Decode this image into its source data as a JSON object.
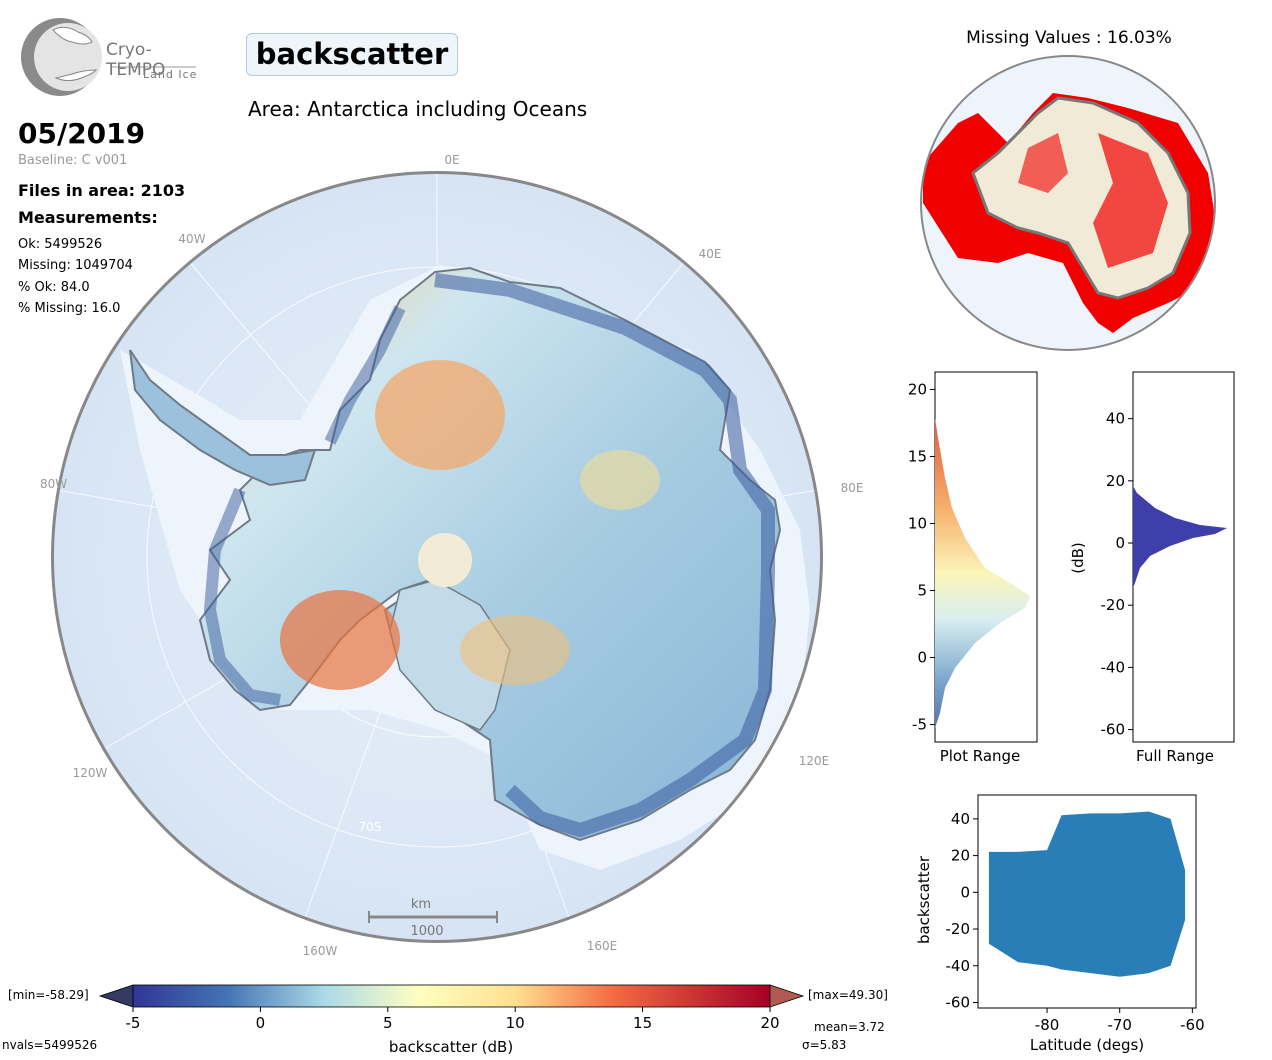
{
  "logo": {
    "name": "Cryo-TEMPO",
    "sub": "Land Ice"
  },
  "parameter": "backscatter",
  "area": "Area: Antarctica including Oceans",
  "date": "05/2019",
  "baseline": "Baseline: C v001",
  "files": "Files in area: 2103",
  "measurements": {
    "heading": "Measurements:",
    "ok": "Ok: 5499526",
    "missing": "Missing: 1049704",
    "pct_ok": "% Ok: 84.0",
    "pct_missing": "% Missing: 16.0"
  },
  "map": {
    "lon_labels": [
      "0E",
      "40E",
      "80E",
      "120E",
      "160E",
      "160W",
      "120W",
      "80W",
      "40W"
    ],
    "lat_label": "70S",
    "scale_unit": "km",
    "scale_value": "1000"
  },
  "missing_map": {
    "title": "Missing Values : 16.03%"
  },
  "colorbar": {
    "label": "backscatter (dB)",
    "ticks": [
      "-5",
      "0",
      "5",
      "10",
      "15",
      "20"
    ],
    "min_label": "[min=-58.29]",
    "max_label": "[max=49.30]",
    "nvals": "nvals=5499526",
    "mean": "mean=3.72",
    "sigma": "σ=5.83"
  },
  "hist_plot_range": {
    "xlabel": "Plot Range",
    "yticks": [
      "20",
      "15",
      "10",
      "5",
      "0",
      "-5"
    ],
    "ylim": [
      -6.3,
      21.3
    ]
  },
  "hist_full_range": {
    "xlabel": "Full Range",
    "ylabel": "(dB)",
    "yticks": [
      "40",
      "20",
      "0",
      "-20",
      "-40",
      "-60"
    ],
    "ylim": [
      -64,
      55
    ]
  },
  "chart_data": {
    "type": "scatter",
    "xlabel": "Latitude (degs)",
    "ylabel": "backscatter",
    "xticks": [
      "-80",
      "-70",
      "-60"
    ],
    "yticks": [
      "40",
      "20",
      "0",
      "-20",
      "-40",
      "-60"
    ],
    "xlim": [
      -89.5,
      -59.5
    ],
    "ylim": [
      -63,
      53
    ],
    "color": "#1f77b4",
    "envelope": [
      {
        "x": -88,
        "ymin": -28,
        "ymax": 22
      },
      {
        "x": -84,
        "ymin": -38,
        "ymax": 22
      },
      {
        "x": -80,
        "ymin": -40,
        "ymax": 23
      },
      {
        "x": -78,
        "ymin": -42,
        "ymax": 42
      },
      {
        "x": -74,
        "ymin": -44,
        "ymax": 43
      },
      {
        "x": -70,
        "ymin": -46,
        "ymax": 43
      },
      {
        "x": -66,
        "ymin": -44,
        "ymax": 44
      },
      {
        "x": -63,
        "ymin": -40,
        "ymax": 40
      },
      {
        "x": -61,
        "ymin": -15,
        "ymax": 12
      }
    ]
  }
}
